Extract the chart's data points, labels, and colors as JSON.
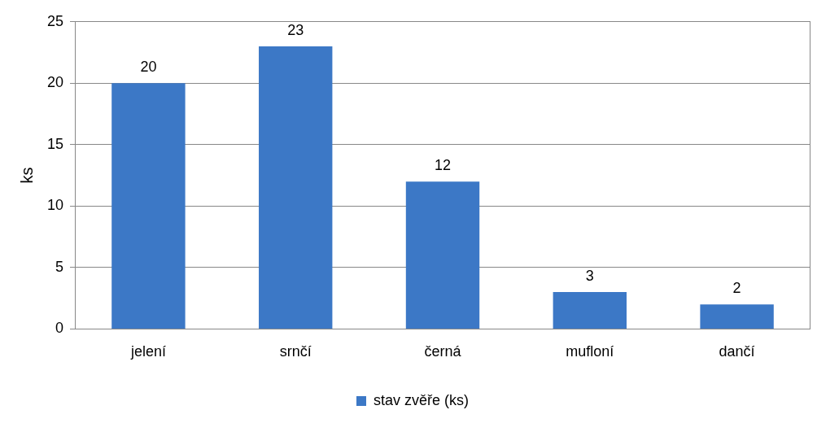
{
  "chart_data": {
    "type": "bar",
    "ylabel": "ks",
    "categories": [
      "jelení",
      "srnčí",
      "černá",
      "mufloní",
      "dančí"
    ],
    "series": [
      {
        "name": "stav zvěře (ks)",
        "color": "#3c78c6",
        "values": [
          20,
          23,
          12,
          3,
          2
        ]
      }
    ],
    "ylim": [
      0,
      25
    ],
    "yticks": [
      0,
      5,
      10,
      15,
      20,
      25
    ],
    "grid": "y",
    "legend": "bottom",
    "data_labels": true
  }
}
